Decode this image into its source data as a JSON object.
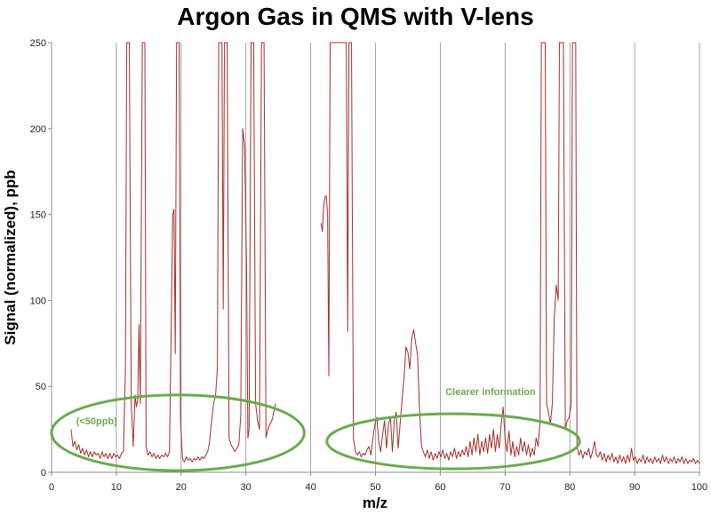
{
  "chart_data": {
    "type": "line",
    "title": "Argon Gas in QMS with V-lens",
    "xlabel": "m/z",
    "ylabel": "Signal (normalized), ppb",
    "xlim": [
      0,
      100
    ],
    "ylim": [
      0,
      250
    ],
    "x_ticks": [
      0,
      10,
      20,
      30,
      40,
      50,
      60,
      70,
      80,
      90,
      100
    ],
    "y_ticks": [
      0,
      50,
      100,
      150,
      200,
      250
    ],
    "grid": "vertical",
    "line_color": "#a0302b",
    "annotation_color": "#6aaa52",
    "series": [
      {
        "points": [
          [
            3.0,
            25
          ],
          [
            3.3,
            15
          ],
          [
            3.6,
            18
          ],
          [
            3.9,
            13
          ],
          [
            4.2,
            16
          ],
          [
            4.5,
            11
          ],
          [
            4.8,
            14
          ],
          [
            5.1,
            10
          ],
          [
            5.4,
            13
          ],
          [
            5.7,
            9
          ],
          [
            6.0,
            12
          ],
          [
            6.3,
            9
          ],
          [
            6.6,
            12
          ],
          [
            6.9,
            10
          ],
          [
            7.2,
            11
          ],
          [
            7.5,
            8
          ],
          [
            7.8,
            12
          ],
          [
            8.1,
            9
          ],
          [
            8.4,
            11
          ],
          [
            8.7,
            8
          ],
          [
            9.0,
            11
          ],
          [
            9.3,
            8
          ],
          [
            9.6,
            11
          ],
          [
            9.9,
            9
          ],
          [
            10.2,
            10
          ],
          [
            10.5,
            8
          ],
          [
            10.8,
            11
          ],
          [
            11.1,
            12
          ],
          [
            11.4,
            60
          ],
          [
            11.6,
            250
          ],
          [
            12.0,
            250
          ],
          [
            12.3,
            40
          ],
          [
            12.6,
            15
          ],
          [
            12.9,
            45
          ],
          [
            13.1,
            38
          ],
          [
            13.3,
            42
          ],
          [
            13.5,
            86
          ],
          [
            13.7,
            40
          ],
          [
            14.0,
            250
          ],
          [
            14.4,
            250
          ],
          [
            14.6,
            15
          ],
          [
            14.9,
            10
          ],
          [
            15.2,
            12
          ],
          [
            15.5,
            9
          ],
          [
            15.8,
            11
          ],
          [
            16.1,
            8
          ],
          [
            16.4,
            10
          ],
          [
            16.7,
            8
          ],
          [
            17.0,
            10
          ],
          [
            17.3,
            9
          ],
          [
            17.6,
            11
          ],
          [
            17.9,
            9
          ],
          [
            18.2,
            12
          ],
          [
            18.5,
            95
          ],
          [
            18.7,
            150
          ],
          [
            18.9,
            153
          ],
          [
            19.1,
            69
          ],
          [
            19.3,
            250
          ],
          [
            19.7,
            250
          ],
          [
            19.9,
            30
          ],
          [
            20.2,
            8
          ],
          [
            20.5,
            6
          ],
          [
            20.8,
            9
          ],
          [
            21.1,
            7
          ],
          [
            21.4,
            8
          ],
          [
            21.7,
            6
          ],
          [
            22.0,
            8
          ],
          [
            22.3,
            7
          ],
          [
            22.6,
            9
          ],
          [
            22.9,
            7
          ],
          [
            23.2,
            9
          ],
          [
            23.5,
            8
          ],
          [
            23.8,
            10
          ],
          [
            24.1,
            12
          ],
          [
            24.4,
            18
          ],
          [
            24.7,
            30
          ],
          [
            25.0,
            40
          ],
          [
            25.3,
            44
          ],
          [
            25.6,
            60
          ],
          [
            25.8,
            250
          ],
          [
            26.3,
            250
          ],
          [
            26.5,
            95
          ],
          [
            26.7,
            250
          ],
          [
            27.1,
            250
          ],
          [
            27.4,
            20
          ],
          [
            27.7,
            16
          ],
          [
            28.0,
            14
          ],
          [
            28.3,
            12
          ],
          [
            28.6,
            14
          ],
          [
            28.9,
            16
          ],
          [
            29.2,
            33
          ],
          [
            29.5,
            200
          ],
          [
            29.8,
            190
          ],
          [
            30.1,
            120
          ],
          [
            30.3,
            20
          ],
          [
            30.5,
            25
          ],
          [
            30.8,
            250
          ],
          [
            31.2,
            250
          ],
          [
            31.5,
            40
          ],
          [
            31.8,
            30
          ],
          [
            32.1,
            25
          ],
          [
            32.4,
            250
          ],
          [
            32.8,
            250
          ],
          [
            33.1,
            20
          ],
          [
            33.4,
            25
          ],
          [
            33.7,
            28
          ],
          [
            34.0,
            30
          ],
          [
            34.3,
            35
          ],
          [
            34.6,
            40
          ],
          [
            41.6,
            145
          ],
          [
            41.8,
            140
          ],
          [
            42.0,
            155
          ],
          [
            42.2,
            160
          ],
          [
            42.4,
            161
          ],
          [
            42.6,
            150
          ],
          [
            42.8,
            56
          ],
          [
            43.0,
            250
          ],
          [
            43.5,
            250
          ],
          [
            45.5,
            250
          ],
          [
            45.7,
            82
          ],
          [
            45.9,
            250
          ],
          [
            46.3,
            250
          ],
          [
            46.6,
            20
          ],
          [
            46.9,
            12
          ],
          [
            47.2,
            10
          ],
          [
            47.5,
            12
          ],
          [
            47.8,
            9
          ],
          [
            48.1,
            11
          ],
          [
            48.4,
            10
          ],
          [
            48.7,
            13
          ],
          [
            49.0,
            15
          ],
          [
            49.3,
            10
          ],
          [
            49.6,
            20
          ],
          [
            49.9,
            28
          ],
          [
            50.2,
            32
          ],
          [
            50.5,
            18
          ],
          [
            50.8,
            12
          ],
          [
            51.1,
            22
          ],
          [
            51.4,
            30
          ],
          [
            51.7,
            14
          ],
          [
            52.0,
            28
          ],
          [
            52.3,
            32
          ],
          [
            52.6,
            12
          ],
          [
            52.9,
            30
          ],
          [
            53.2,
            35
          ],
          [
            53.5,
            14
          ],
          [
            53.8,
            28
          ],
          [
            54.1,
            42
          ],
          [
            54.4,
            55
          ],
          [
            54.7,
            73
          ],
          [
            55.0,
            70
          ],
          [
            55.3,
            60
          ],
          [
            55.6,
            78
          ],
          [
            55.9,
            83
          ],
          [
            56.2,
            75
          ],
          [
            56.5,
            68
          ],
          [
            56.8,
            35
          ],
          [
            57.1,
            15
          ],
          [
            57.4,
            12
          ],
          [
            57.7,
            9
          ],
          [
            58.0,
            13
          ],
          [
            58.3,
            8
          ],
          [
            58.6,
            12
          ],
          [
            58.9,
            7
          ],
          [
            59.2,
            11
          ],
          [
            59.5,
            8
          ],
          [
            59.8,
            12
          ],
          [
            60.1,
            9
          ],
          [
            60.4,
            13
          ],
          [
            60.7,
            8
          ],
          [
            61.0,
            11
          ],
          [
            61.3,
            7
          ],
          [
            61.6,
            12
          ],
          [
            61.9,
            9
          ],
          [
            62.2,
            14
          ],
          [
            62.5,
            8
          ],
          [
            62.8,
            12
          ],
          [
            63.1,
            9
          ],
          [
            63.4,
            13
          ],
          [
            63.7,
            10
          ],
          [
            64.0,
            15
          ],
          [
            64.3,
            9
          ],
          [
            64.6,
            18
          ],
          [
            64.9,
            10
          ],
          [
            65.2,
            20
          ],
          [
            65.5,
            12
          ],
          [
            65.8,
            22
          ],
          [
            66.1,
            10
          ],
          [
            66.4,
            18
          ],
          [
            66.7,
            12
          ],
          [
            67.0,
            20
          ],
          [
            67.3,
            11
          ],
          [
            67.6,
            22
          ],
          [
            67.9,
            14
          ],
          [
            68.2,
            25
          ],
          [
            68.5,
            12
          ],
          [
            68.8,
            22
          ],
          [
            69.1,
            14
          ],
          [
            69.4,
            28
          ],
          [
            69.7,
            38
          ],
          [
            70.0,
            20
          ],
          [
            70.3,
            12
          ],
          [
            70.6,
            24
          ],
          [
            70.9,
            10
          ],
          [
            71.2,
            18
          ],
          [
            71.5,
            9
          ],
          [
            71.8,
            15
          ],
          [
            72.1,
            10
          ],
          [
            72.4,
            20
          ],
          [
            72.7,
            12
          ],
          [
            73.0,
            18
          ],
          [
            73.3,
            10
          ],
          [
            73.6,
            16
          ],
          [
            73.9,
            9
          ],
          [
            74.2,
            14
          ],
          [
            74.5,
            10
          ],
          [
            74.8,
            20
          ],
          [
            75.1,
            15
          ],
          [
            75.4,
            30
          ],
          [
            75.6,
            250
          ],
          [
            76.2,
            250
          ],
          [
            76.4,
            40
          ],
          [
            76.7,
            35
          ],
          [
            77.0,
            28
          ],
          [
            77.3,
            40
          ],
          [
            77.6,
            90
          ],
          [
            77.9,
            109
          ],
          [
            78.2,
            100
          ],
          [
            78.4,
            250
          ],
          [
            79.0,
            250
          ],
          [
            79.3,
            25
          ],
          [
            79.6,
            30
          ],
          [
            79.9,
            32
          ],
          [
            80.2,
            40
          ],
          [
            80.4,
            250
          ],
          [
            80.9,
            250
          ],
          [
            81.1,
            15
          ],
          [
            81.4,
            10
          ],
          [
            81.7,
            13
          ],
          [
            82.0,
            8
          ],
          [
            82.3,
            12
          ],
          [
            82.6,
            10
          ],
          [
            82.9,
            14
          ],
          [
            83.2,
            8
          ],
          [
            83.5,
            12
          ],
          [
            83.8,
            18
          ],
          [
            84.1,
            10
          ],
          [
            84.4,
            9
          ],
          [
            84.7,
            12
          ],
          [
            85.0,
            7
          ],
          [
            85.3,
            11
          ],
          [
            85.6,
            6
          ],
          [
            85.9,
            10
          ],
          [
            86.2,
            7
          ],
          [
            86.5,
            11
          ],
          [
            86.8,
            6
          ],
          [
            87.1,
            9
          ],
          [
            87.4,
            5
          ],
          [
            87.7,
            10
          ],
          [
            88.0,
            6
          ],
          [
            88.3,
            9
          ],
          [
            88.6,
            5
          ],
          [
            88.9,
            10
          ],
          [
            89.2,
            6
          ],
          [
            89.5,
            14
          ],
          [
            89.8,
            7
          ],
          [
            90.1,
            9
          ],
          [
            90.4,
            5
          ],
          [
            90.7,
            8
          ],
          [
            91.0,
            6
          ],
          [
            91.3,
            10
          ],
          [
            91.6,
            5
          ],
          [
            91.9,
            9
          ],
          [
            92.2,
            6
          ],
          [
            92.5,
            8
          ],
          [
            92.8,
            5
          ],
          [
            93.1,
            9
          ],
          [
            93.4,
            6
          ],
          [
            93.7,
            8
          ],
          [
            94.0,
            5
          ],
          [
            94.3,
            10
          ],
          [
            94.6,
            6
          ],
          [
            94.9,
            9
          ],
          [
            95.2,
            5
          ],
          [
            95.5,
            8
          ],
          [
            95.8,
            6
          ],
          [
            96.1,
            9
          ],
          [
            96.4,
            5
          ],
          [
            96.7,
            8
          ],
          [
            97.0,
            6
          ],
          [
            97.3,
            9
          ],
          [
            97.6,
            5
          ],
          [
            97.9,
            8
          ],
          [
            98.2,
            5
          ],
          [
            98.5,
            7
          ],
          [
            98.8,
            6
          ],
          [
            99.1,
            8
          ],
          [
            99.4,
            5
          ],
          [
            99.7,
            7
          ],
          [
            100.0,
            5
          ]
        ]
      }
    ],
    "annotations": [
      {
        "text": "(<50ppb)",
        "center": [
          19.5,
          23
        ],
        "radius": [
          19.5,
          22
        ],
        "label_at": [
          3.8,
          28
        ]
      },
      {
        "text": "Clearer information",
        "center": [
          62.0,
          18
        ],
        "radius": [
          19.5,
          16
        ],
        "label_at": [
          60.8,
          45
        ]
      }
    ]
  }
}
